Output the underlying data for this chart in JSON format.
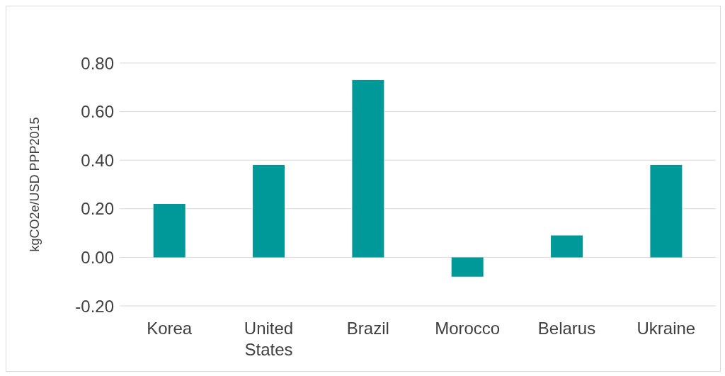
{
  "chart_data": {
    "type": "bar",
    "ylabel": "kgCO2e/USD PPP2015",
    "categories": [
      "Korea",
      "United States",
      "Brazil",
      "Morocco",
      "Belarus",
      "Ukraine"
    ],
    "values": [
      0.22,
      0.38,
      0.73,
      -0.08,
      0.09,
      0.38
    ],
    "color": "#009999",
    "ylim": [
      -0.2,
      0.8
    ],
    "yticks": [
      {
        "value": -0.2,
        "label": "-0.20"
      },
      {
        "value": 0,
        "label": "0.00"
      },
      {
        "value": 0.2,
        "label": "0.20"
      },
      {
        "value": 0.4,
        "label": "0.40"
      },
      {
        "value": 0.6,
        "label": "0.60"
      },
      {
        "value": 0.8,
        "label": "0.80"
      }
    ],
    "grid": "y"
  }
}
